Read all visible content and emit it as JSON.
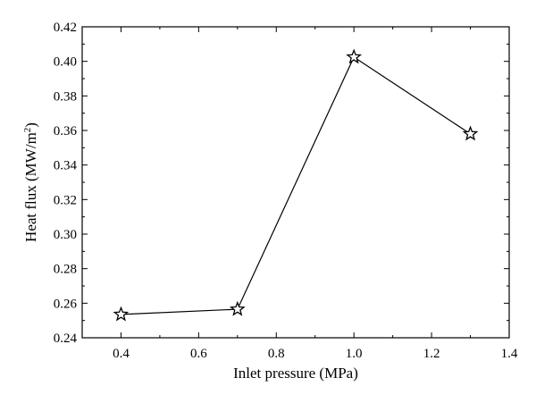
{
  "chart_data": {
    "type": "line",
    "xlabel": "Inlet pressure (MPa)",
    "ylabel": {
      "text": "Heat flux (MW/m",
      "superscript": "2",
      "suffix": ")"
    },
    "xlim": [
      0.3,
      1.4
    ],
    "ylim": [
      0.24,
      0.42
    ],
    "xticks": [
      0.4,
      0.6,
      0.8,
      1.0,
      1.2,
      1.4
    ],
    "xtick_labels": [
      "0.4",
      "0.6",
      "0.8",
      "1.0",
      "1.2",
      "1.4"
    ],
    "yticks": [
      0.24,
      0.26,
      0.28,
      0.3,
      0.32,
      0.34,
      0.36,
      0.38,
      0.4,
      0.42
    ],
    "ytick_labels": [
      "0.24",
      "0.26",
      "0.28",
      "0.30",
      "0.32",
      "0.34",
      "0.36",
      "0.38",
      "0.40",
      "0.42"
    ],
    "grid": false,
    "marker": "star",
    "line_color": "#000000",
    "series": [
      {
        "x": [
          0.4,
          0.7,
          1.0,
          1.3
        ],
        "y": [
          0.2535,
          0.2565,
          0.4025,
          0.358
        ]
      }
    ]
  }
}
